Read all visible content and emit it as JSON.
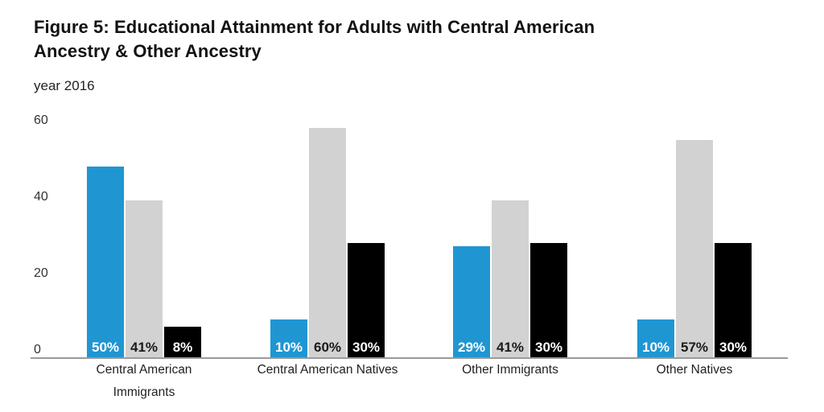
{
  "colors": {
    "bar_blue": "#1f96d2",
    "bar_gray": "#d2d2d2",
    "bar_black": "#000000",
    "axis_line": "#9b9b9b",
    "label_on_dark": "#ffffff",
    "label_on_light": "#1a1a1a"
  },
  "chart_data": {
    "type": "bar",
    "title": "Figure 5: Educational Attainment for Adults with Central American Ancestry & Other Ancestry",
    "title_display": "Figure 5: Educational Attainment for Adults with Central American\nAncestry & Other Ancestry",
    "subtitle": "year 2016",
    "categories": [
      "Central American Immigrants",
      "Central American Natives",
      "Other Immigrants",
      "Other Natives"
    ],
    "categories_display": [
      "Central American\nImmigrants",
      "Central American Natives",
      "Other Immigrants",
      "Other Natives"
    ],
    "series": [
      {
        "name": "series-1-blue",
        "color_key": "bar_blue",
        "label_color_key": "label_on_dark",
        "values": [
          50,
          10,
          29,
          10
        ],
        "labels": [
          "50%",
          "10%",
          "29%",
          "10%"
        ]
      },
      {
        "name": "series-2-gray",
        "color_key": "bar_gray",
        "label_color_key": "label_on_light",
        "values": [
          41,
          60,
          41,
          57
        ],
        "labels": [
          "41%",
          "60%",
          "41%",
          "57%"
        ]
      },
      {
        "name": "series-3-black",
        "color_key": "bar_black",
        "label_color_key": "label_on_dark",
        "values": [
          8,
          30,
          30,
          30
        ],
        "labels": [
          "8%",
          "30%",
          "30%",
          "30%"
        ]
      }
    ],
    "y_axis": {
      "tick_values": [
        0,
        20,
        40,
        60
      ],
      "tick_labels": [
        "0",
        "20",
        "40",
        "60"
      ],
      "range": [
        0,
        60
      ]
    },
    "x_axis_label": "",
    "y_axis_label": "",
    "legend_position": "none",
    "gridlines": false,
    "value_label_format": "percent"
  }
}
